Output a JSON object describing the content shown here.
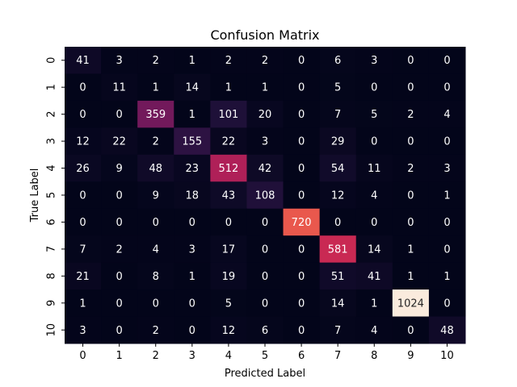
{
  "chart_data": {
    "type": "heatmap",
    "title": "Confusion Matrix",
    "xlabel": "Predicted Label",
    "ylabel": "True Label",
    "x_categories": [
      "0",
      "1",
      "2",
      "3",
      "4",
      "5",
      "6",
      "7",
      "8",
      "9",
      "10"
    ],
    "y_categories": [
      "0",
      "1",
      "2",
      "3",
      "4",
      "5",
      "6",
      "7",
      "8",
      "9",
      "10"
    ],
    "values": [
      [
        41,
        3,
        2,
        1,
        2,
        2,
        0,
        6,
        3,
        0,
        0
      ],
      [
        0,
        11,
        1,
        14,
        1,
        1,
        0,
        5,
        0,
        0,
        0
      ],
      [
        0,
        0,
        359,
        1,
        101,
        20,
        0,
        7,
        5,
        2,
        4
      ],
      [
        12,
        22,
        2,
        155,
        22,
        3,
        0,
        29,
        0,
        0,
        0
      ],
      [
        26,
        9,
        48,
        23,
        512,
        42,
        0,
        54,
        11,
        2,
        3
      ],
      [
        0,
        0,
        9,
        18,
        43,
        108,
        0,
        12,
        4,
        0,
        1
      ],
      [
        0,
        0,
        0,
        0,
        0,
        0,
        720,
        0,
        0,
        0,
        0
      ],
      [
        7,
        2,
        4,
        3,
        17,
        0,
        0,
        581,
        14,
        1,
        0
      ],
      [
        21,
        0,
        8,
        1,
        19,
        0,
        0,
        51,
        41,
        1,
        1
      ],
      [
        1,
        0,
        0,
        0,
        5,
        0,
        0,
        14,
        1,
        1024,
        0
      ],
      [
        3,
        0,
        2,
        0,
        12,
        6,
        0,
        7,
        4,
        0,
        48
      ]
    ],
    "colormap": "rocket",
    "colorbar": false,
    "grid": false,
    "vmin": 0,
    "vmax": 1024
  }
}
